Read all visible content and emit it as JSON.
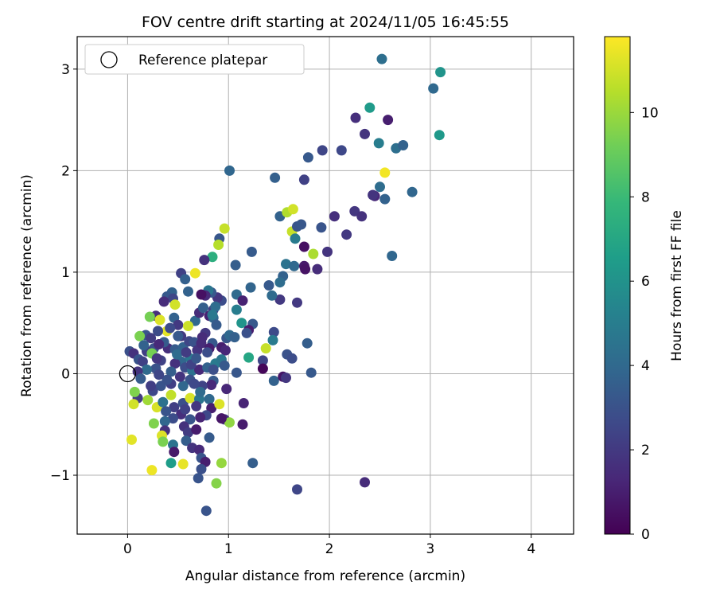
{
  "chart_data": {
    "type": "scatter",
    "title": "FOV centre drift starting at 2024/11/05 16:45:55",
    "xlabel": "Angular distance from reference (arcmin)",
    "ylabel": "Rotation from reference (arcmin)",
    "xlim": [
      -0.5,
      4.42
    ],
    "ylim": [
      -1.58,
      3.32
    ],
    "xticks": [
      "0",
      "1",
      "2",
      "3",
      "4"
    ],
    "xtick_values": [
      0,
      1,
      2,
      3,
      4
    ],
    "yticks": [
      "−1",
      "0",
      "1",
      "2",
      "3"
    ],
    "ytick_values": [
      -1,
      0,
      1,
      2,
      3
    ],
    "grid": true,
    "legend": {
      "position": "upper-left",
      "entries": [
        "Reference platepar"
      ]
    },
    "reference_point": {
      "x": 0,
      "y": 0,
      "label": "Reference platepar"
    },
    "colorbar": {
      "label": "Hours from first FF file",
      "range": [
        0,
        11.8
      ],
      "ticks": [
        "0",
        "2",
        "4",
        "6",
        "8",
        "10"
      ],
      "tick_values": [
        0,
        2,
        4,
        6,
        8,
        10
      ],
      "colormap_stops": [
        "#440154",
        "#482878",
        "#3e4989",
        "#31688e",
        "#26828e",
        "#1f9e89",
        "#35b779",
        "#6ece58",
        "#b5de2b",
        "#fde725"
      ]
    },
    "points": [
      [
        2.52,
        3.1,
        4.3
      ],
      [
        3.1,
        2.97,
        6.1
      ],
      [
        3.03,
        2.81,
        4.0
      ],
      [
        3.09,
        2.35,
        6.3
      ],
      [
        2.26,
        2.52,
        1.6
      ],
      [
        2.4,
        2.62,
        6.4
      ],
      [
        2.58,
        2.5,
        1.0
      ],
      [
        2.35,
        2.36,
        1.8
      ],
      [
        2.49,
        2.27,
        5.0
      ],
      [
        2.66,
        2.22,
        4.3
      ],
      [
        2.73,
        2.25,
        3.7
      ],
      [
        2.12,
        2.2,
        2.6
      ],
      [
        1.93,
        2.2,
        2.5
      ],
      [
        1.79,
        2.13,
        3.3
      ],
      [
        1.75,
        1.91,
        2.3
      ],
      [
        1.46,
        1.93,
        3.6
      ],
      [
        1.01,
        2.0,
        3.9
      ],
      [
        2.55,
        1.98,
        11.6
      ],
      [
        2.5,
        1.84,
        4.2
      ],
      [
        2.45,
        1.75,
        1.3
      ],
      [
        2.43,
        1.76,
        1.8
      ],
      [
        2.55,
        1.72,
        3.7
      ],
      [
        2.82,
        1.79,
        3.9
      ],
      [
        2.25,
        1.6,
        1.9
      ],
      [
        2.32,
        1.55,
        1.7
      ],
      [
        2.05,
        1.55,
        1.6
      ],
      [
        1.92,
        1.44,
        3.1
      ],
      [
        1.51,
        1.55,
        3.7
      ],
      [
        1.58,
        1.59,
        10.4
      ],
      [
        1.64,
        1.62,
        11.0
      ],
      [
        1.63,
        1.4,
        10.8
      ],
      [
        1.68,
        1.45,
        3.1
      ],
      [
        1.72,
        1.47,
        3.2
      ],
      [
        1.66,
        1.33,
        4.9
      ],
      [
        2.17,
        1.37,
        2.0
      ],
      [
        1.75,
        1.25,
        0.5
      ],
      [
        1.84,
        1.18,
        10.3
      ],
      [
        1.98,
        1.2,
        1.8
      ],
      [
        2.62,
        1.16,
        3.9
      ],
      [
        1.57,
        1.08,
        4.5
      ],
      [
        1.65,
        1.06,
        4.0
      ],
      [
        1.75,
        1.06,
        0.8
      ],
      [
        1.76,
        1.03,
        0.6
      ],
      [
        1.88,
        1.03,
        1.5
      ],
      [
        0.96,
        1.43,
        10.8
      ],
      [
        0.91,
        1.33,
        3.2
      ],
      [
        0.9,
        1.27,
        10.5
      ],
      [
        0.84,
        1.15,
        7.4
      ],
      [
        0.76,
        1.12,
        1.7
      ],
      [
        0.53,
        0.99,
        2.3
      ],
      [
        0.67,
        0.99,
        11.5
      ],
      [
        0.57,
        0.93,
        3.6
      ],
      [
        1.23,
        1.2,
        3.4
      ],
      [
        1.07,
        1.07,
        3.5
      ],
      [
        1.4,
        0.87,
        3.3
      ],
      [
        1.54,
        0.96,
        3.7
      ],
      [
        1.51,
        0.9,
        4.2
      ],
      [
        1.68,
        0.7,
        2.0
      ],
      [
        1.51,
        0.73,
        2.0
      ],
      [
        1.43,
        0.77,
        4.1
      ],
      [
        1.22,
        0.85,
        3.8
      ],
      [
        1.08,
        0.78,
        4.1
      ],
      [
        1.14,
        0.72,
        1.1
      ],
      [
        1.08,
        0.63,
        5.0
      ],
      [
        0.93,
        0.72,
        2.8
      ],
      [
        0.89,
        0.75,
        1.9
      ],
      [
        0.83,
        0.8,
        3.3
      ],
      [
        0.8,
        0.82,
        4.6
      ],
      [
        0.77,
        0.77,
        1.4
      ],
      [
        0.73,
        0.78,
        0.5
      ],
      [
        0.6,
        0.81,
        3.7
      ],
      [
        0.44,
        0.8,
        3.7
      ],
      [
        0.39,
        0.76,
        3.3
      ],
      [
        0.45,
        0.74,
        2.5
      ],
      [
        0.36,
        0.71,
        1.5
      ],
      [
        0.47,
        0.68,
        11.0
      ],
      [
        0.28,
        0.57,
        1.6
      ],
      [
        0.22,
        0.56,
        9.3
      ],
      [
        0.32,
        0.53,
        11.2
      ],
      [
        0.46,
        0.55,
        3.7
      ],
      [
        0.5,
        0.48,
        2.0
      ],
      [
        0.67,
        0.52,
        4.0
      ],
      [
        0.71,
        0.6,
        1.5
      ],
      [
        0.75,
        0.65,
        3.5
      ],
      [
        0.85,
        0.63,
        2.1
      ],
      [
        0.87,
        0.66,
        4.2
      ],
      [
        0.81,
        0.57,
        1.1
      ],
      [
        0.85,
        0.55,
        3.9
      ],
      [
        0.84,
        0.58,
        4.8
      ],
      [
        0.88,
        0.48,
        3.4
      ],
      [
        1.13,
        0.5,
        6.1
      ],
      [
        1.24,
        0.49,
        3.3
      ],
      [
        1.2,
        0.43,
        0.9
      ],
      [
        1.18,
        0.4,
        2.9
      ],
      [
        0.98,
        0.35,
        3.2
      ],
      [
        1.01,
        0.38,
        4.0
      ],
      [
        0.93,
        0.26,
        1.0
      ],
      [
        0.97,
        0.23,
        1.3
      ],
      [
        0.84,
        0.3,
        3.3
      ],
      [
        0.77,
        0.4,
        2.0
      ],
      [
        0.74,
        0.36,
        1.5
      ],
      [
        0.6,
        0.47,
        10.9
      ],
      [
        0.53,
        0.37,
        2.0
      ],
      [
        0.39,
        0.42,
        11.3
      ],
      [
        0.3,
        0.42,
        2.7
      ],
      [
        0.18,
        0.38,
        3.1
      ],
      [
        0.12,
        0.37,
        9.4
      ],
      [
        0.23,
        0.35,
        2.1
      ],
      [
        0.26,
        0.25,
        2.9
      ],
      [
        0.19,
        0.22,
        2.2
      ],
      [
        0.24,
        0.2,
        9.3
      ],
      [
        0.02,
        0.22,
        2.9
      ],
      [
        0.06,
        0.2,
        1.7
      ],
      [
        0.11,
        0.14,
        3.1
      ],
      [
        0.15,
        0.12,
        2.3
      ],
      [
        0.4,
        0.25,
        1.6
      ],
      [
        0.47,
        0.24,
        3.4
      ],
      [
        0.55,
        0.26,
        3.7
      ],
      [
        0.61,
        0.32,
        2.5
      ],
      [
        0.66,
        0.31,
        3.0
      ],
      [
        0.69,
        0.23,
        1.8
      ],
      [
        0.73,
        0.3,
        1.5
      ],
      [
        0.81,
        0.25,
        1.0
      ],
      [
        0.79,
        0.21,
        2.8
      ],
      [
        0.62,
        0.15,
        4.8
      ],
      [
        0.53,
        0.12,
        3.9
      ],
      [
        0.47,
        0.1,
        1.7
      ],
      [
        0.33,
        0.13,
        2.4
      ],
      [
        0.28,
        0.05,
        3.0
      ],
      [
        0.19,
        0.04,
        4.1
      ],
      [
        0.1,
        0.02,
        1.8
      ],
      [
        0.43,
        0.02,
        3.5
      ],
      [
        0.57,
        0.06,
        2.8
      ],
      [
        0.64,
        0.03,
        4.4
      ],
      [
        0.71,
        0.04,
        1.4
      ],
      [
        0.79,
        0.06,
        3.7
      ],
      [
        0.87,
        0.1,
        4.9
      ],
      [
        0.93,
        0.14,
        4.7
      ],
      [
        0.96,
        0.08,
        3.3
      ],
      [
        0.85,
        0.04,
        2.9
      ],
      [
        1.06,
        0.36,
        3.6
      ],
      [
        1.45,
        0.41,
        2.7
      ],
      [
        1.44,
        0.33,
        4.9
      ],
      [
        1.37,
        0.25,
        10.8
      ],
      [
        1.2,
        0.16,
        7.0
      ],
      [
        1.34,
        0.13,
        2.5
      ],
      [
        1.58,
        0.19,
        3.0
      ],
      [
        1.63,
        0.15,
        2.8
      ],
      [
        1.78,
        0.3,
        3.5
      ],
      [
        1.34,
        0.05,
        0.2
      ],
      [
        1.45,
        -0.07,
        3.7
      ],
      [
        1.54,
        -0.03,
        0.7
      ],
      [
        1.57,
        -0.04,
        1.9
      ],
      [
        1.82,
        0.01,
        3.3
      ],
      [
        1.08,
        0.01,
        3.2
      ],
      [
        0.98,
        -0.15,
        1.3
      ],
      [
        0.85,
        -0.07,
        3.4
      ],
      [
        0.83,
        -0.11,
        1.4
      ],
      [
        0.74,
        -0.12,
        2.4
      ],
      [
        0.62,
        -0.06,
        3.0
      ],
      [
        0.55,
        -0.12,
        3.9
      ],
      [
        0.43,
        -0.1,
        2.2
      ],
      [
        0.33,
        -0.12,
        3.1
      ],
      [
        0.25,
        -0.17,
        2.6
      ],
      [
        0.2,
        -0.26,
        10.1
      ],
      [
        0.1,
        -0.24,
        2.1
      ],
      [
        0.07,
        -0.18,
        9.5
      ],
      [
        0.06,
        -0.3,
        11.0
      ],
      [
        0.29,
        -0.33,
        11.1
      ],
      [
        0.35,
        -0.28,
        4.4
      ],
      [
        0.43,
        -0.21,
        10.7
      ],
      [
        0.46,
        -0.33,
        2.2
      ],
      [
        0.55,
        -0.29,
        2.9
      ],
      [
        0.62,
        -0.24,
        11.1
      ],
      [
        0.71,
        -0.25,
        4.6
      ],
      [
        0.68,
        -0.32,
        1.9
      ],
      [
        0.81,
        -0.25,
        4.0
      ],
      [
        0.83,
        -0.34,
        1.0
      ],
      [
        0.91,
        -0.3,
        11.2
      ],
      [
        1.15,
        -0.29,
        1.2
      ],
      [
        0.78,
        -0.41,
        2.6
      ],
      [
        0.72,
        -0.43,
        1.2
      ],
      [
        0.62,
        -0.45,
        3.1
      ],
      [
        0.53,
        -0.4,
        1.6
      ],
      [
        0.45,
        -0.44,
        2.8
      ],
      [
        0.37,
        -0.47,
        3.9
      ],
      [
        0.26,
        -0.49,
        9.5
      ],
      [
        0.37,
        -0.56,
        1.7
      ],
      [
        0.56,
        -0.52,
        1.7
      ],
      [
        0.6,
        -0.58,
        2.1
      ],
      [
        0.68,
        -0.55,
        0.9
      ],
      [
        0.81,
        -0.63,
        3.4
      ],
      [
        0.96,
        -0.45,
        1.7
      ],
      [
        1.01,
        -0.48,
        9.8
      ],
      [
        0.93,
        -0.44,
        0.7
      ],
      [
        1.14,
        -0.5,
        0.9
      ],
      [
        0.34,
        -0.61,
        11.2
      ],
      [
        0.35,
        -0.67,
        9.4
      ],
      [
        0.45,
        -0.7,
        4.5
      ],
      [
        0.46,
        -0.77,
        0.8
      ],
      [
        0.58,
        -0.66,
        3.5
      ],
      [
        0.64,
        -0.73,
        1.8
      ],
      [
        0.71,
        -0.75,
        1.4
      ],
      [
        0.73,
        -0.83,
        3.1
      ],
      [
        0.77,
        -0.87,
        1.0
      ],
      [
        0.43,
        -0.88,
        6.5
      ],
      [
        0.55,
        -0.89,
        11.4
      ],
      [
        0.73,
        -0.94,
        2.9
      ],
      [
        0.7,
        -1.03,
        3.1
      ],
      [
        0.93,
        -0.88,
        9.9
      ],
      [
        1.24,
        -0.88,
        3.5
      ],
      [
        0.88,
        -1.08,
        9.6
      ],
      [
        0.78,
        -1.35,
        3.1
      ],
      [
        0.24,
        -0.95,
        11.5
      ],
      [
        0.04,
        -0.65,
        11.3
      ],
      [
        2.35,
        -1.07,
        1.5
      ],
      [
        1.68,
        -1.14,
        2.5
      ],
      [
        0.23,
        -0.12,
        2.2
      ],
      [
        0.29,
        0.15,
        1.9
      ],
      [
        0.36,
        0.31,
        3.4
      ],
      [
        0.49,
        0.19,
        4.2
      ],
      [
        0.58,
        0.21,
        2.1
      ],
      [
        0.63,
        0.09,
        2.4
      ],
      [
        0.68,
        0.15,
        3.2
      ],
      [
        0.52,
        -0.03,
        1.8
      ],
      [
        0.39,
        -0.06,
        3.0
      ],
      [
        0.31,
        -0.01,
        2.5
      ],
      [
        0.72,
        -0.18,
        4.1
      ],
      [
        0.66,
        -0.1,
        2.6
      ],
      [
        0.5,
        0.37,
        3.3
      ],
      [
        0.42,
        0.45,
        2.7
      ],
      [
        0.31,
        0.29,
        1.4
      ],
      [
        0.16,
        0.28,
        3.7
      ],
      [
        0.13,
        -0.05,
        3.4
      ],
      [
        0.38,
        -0.37,
        3.1
      ],
      [
        0.57,
        -0.35,
        2.3
      ]
    ]
  }
}
